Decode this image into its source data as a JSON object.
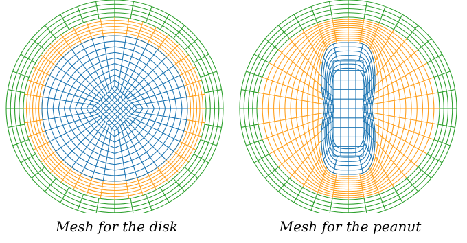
{
  "colors": {
    "outer_ring": "#2ca02c",
    "middle_ring": "#ff9f1c",
    "inner_mesh": "#1f77b4"
  },
  "panels": [
    {
      "id": "disk",
      "caption": "Mesh for the disk"
    },
    {
      "id": "peanut",
      "caption": "Mesh for the peanut"
    }
  ]
}
